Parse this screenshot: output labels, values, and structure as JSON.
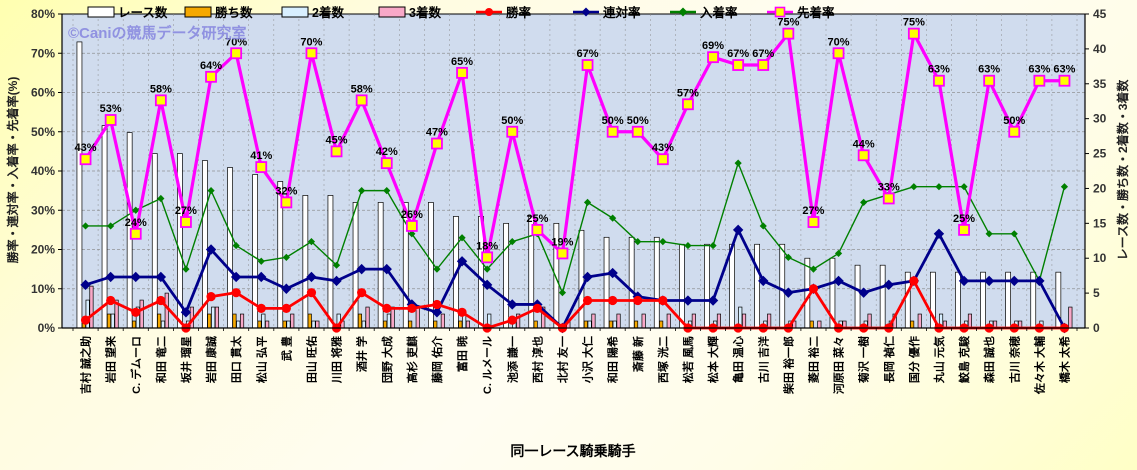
{
  "watermark": "©Caniの競馬データ研究室",
  "axes": {
    "y_left_title": "勝率・連対率・入着率・先着率(%)",
    "y_right_title": "レース数・勝ち数・2着数・3着数",
    "x_title": "同一レース騎乗騎手",
    "y_ticks_left": [
      "0%",
      "10%",
      "20%",
      "30%",
      "40%",
      "50%",
      "60%",
      "70%",
      "80%"
    ],
    "y_ticks_right": [
      "0",
      "5",
      "10",
      "15",
      "20",
      "25",
      "30",
      "35",
      "40",
      "45"
    ]
  },
  "colors": {
    "plot_bg": "#cdd9ec",
    "grid": "#8a8a8a",
    "races_bar": "#ffffff",
    "wins_bar": "#f5a800",
    "seconds_bar": "#d8efff",
    "thirds_bar": "#f8a8c8",
    "win_rate_line": "#ff0000",
    "rentai_line": "#00008b",
    "nyuchaku_line": "#008000",
    "senchaku_line": "#ff00ff",
    "senchaku_marker_fill": "#ffff00",
    "watermark_color": "#8a8ae0"
  },
  "chart_data": {
    "type": "bar+line combo (Excel style)",
    "title": "",
    "xlabel": "同一レース騎乗騎手",
    "ylabel_left": "勝率・連対率・入着率・先着率(%)",
    "ylabel_right": "レース数・勝ち数・2着数・3着数",
    "ylim_left": [
      0,
      80
    ],
    "ylim_right": [
      0,
      45
    ],
    "grid": true,
    "legend_position": "top",
    "categories": [
      "吉村 誠之助",
      "岩田 望来",
      "C. デムーロ",
      "和田 竜二",
      "坂井 瑠星",
      "岩田 康誠",
      "田口 貫太",
      "松山 弘平",
      "武 豊",
      "田山 旺佑",
      "川田 将雅",
      "酒井 学",
      "団野 大成",
      "高杉 吏麒",
      "藤岡 佑介",
      "富田 暁",
      "C. ルメール",
      "池添 謙一",
      "西村 淳也",
      "北村 友一",
      "小沢 大仁",
      "和田 陽希",
      "斎藤 新",
      "西塚 洸二",
      "松若 風馬",
      "松本 大輝",
      "亀田 温心",
      "古川 吉洋",
      "柴田 裕一郎",
      "菱田 裕二",
      "河原田 菜々",
      "菊沢 一樹",
      "長岡 禎仁",
      "国分 優作",
      "丸山 元気",
      "鮫島 克駿",
      "森田 誠也",
      "古川 奈穂",
      "佐々木 大輔",
      "橋木 太希"
    ],
    "bar_series": [
      {
        "name": "レース数",
        "color": "#ffffff",
        "axis": "right",
        "values": [
          41,
          29,
          28,
          25,
          25,
          24,
          23,
          22,
          21,
          19,
          19,
          18,
          18,
          18,
          18,
          16,
          16,
          15,
          16,
          15,
          14,
          13,
          13,
          13,
          12,
          12,
          12,
          12,
          12,
          10,
          10,
          9,
          9,
          8,
          8,
          8,
          8,
          8,
          8,
          8
        ]
      },
      {
        "name": "勝ち数",
        "color": "#f5a800",
        "axis": "right",
        "values": [
          1,
          2,
          1,
          2,
          0,
          2,
          2,
          1,
          1,
          2,
          0,
          2,
          1,
          1,
          1,
          1,
          0,
          0,
          1,
          0,
          1,
          1,
          1,
          1,
          0,
          0,
          0,
          0,
          0,
          1,
          0,
          0,
          0,
          1,
          0,
          0,
          0,
          0,
          0,
          0
        ]
      },
      {
        "name": "2着数",
        "color": "#d8efff",
        "axis": "right",
        "values": [
          4,
          2,
          3,
          1,
          1,
          3,
          1,
          2,
          1,
          1,
          2,
          1,
          2,
          0,
          0,
          2,
          2,
          1,
          0,
          0,
          1,
          1,
          0,
          0,
          1,
          1,
          3,
          1,
          1,
          0,
          1,
          1,
          1,
          0,
          2,
          1,
          1,
          1,
          1,
          0
        ]
      },
      {
        "name": "3着数",
        "color": "#f8a8c8",
        "axis": "right",
        "values": [
          6,
          4,
          4,
          5,
          3,
          3,
          2,
          1,
          2,
          1,
          1,
          3,
          3,
          3,
          2,
          1,
          0,
          2,
          3,
          1,
          2,
          2,
          2,
          2,
          2,
          2,
          2,
          2,
          1,
          1,
          1,
          2,
          2,
          2,
          1,
          2,
          1,
          1,
          0,
          3
        ]
      }
    ],
    "line_series": [
      {
        "name": "勝率",
        "color": "#ff0000",
        "marker": "circle",
        "axis": "left",
        "values": [
          2,
          7,
          4,
          7,
          0,
          8,
          9,
          5,
          5,
          9,
          0,
          9,
          5,
          5,
          6,
          4,
          0,
          2,
          5,
          0,
          7,
          7,
          7,
          7,
          0,
          0,
          0,
          0,
          0,
          10,
          0,
          0,
          0,
          12,
          0,
          0,
          0,
          0,
          0,
          0
        ]
      },
      {
        "name": "連対率",
        "color": "#00008b",
        "marker": "diamond",
        "axis": "left",
        "values": [
          11,
          13,
          13,
          13,
          4,
          20,
          13,
          13,
          10,
          13,
          12,
          15,
          15,
          6,
          4,
          17,
          11,
          6,
          6,
          0,
          13,
          14,
          8,
          7,
          7,
          7,
          25,
          12,
          9,
          10,
          12,
          9,
          11,
          12,
          24,
          12,
          12,
          12,
          12,
          0
        ]
      },
      {
        "name": "入着率",
        "color": "#008000",
        "marker": "diamond",
        "axis": "left",
        "values": [
          26,
          26,
          30,
          33,
          15,
          35,
          21,
          17,
          18,
          22,
          16,
          35,
          35,
          24,
          15,
          23,
          15,
          22,
          24,
          9,
          32,
          28,
          22,
          22,
          21,
          21,
          42,
          26,
          18,
          15,
          19,
          32,
          34,
          36,
          36,
          36,
          24,
          24,
          12,
          36
        ]
      },
      {
        "name": "先着率",
        "color": "#ff00ff",
        "marker": "square",
        "axis": "left",
        "data_labels": true,
        "values": [
          43,
          53,
          24,
          58,
          27,
          64,
          70,
          41,
          32,
          70,
          45,
          58,
          42,
          26,
          47,
          65,
          18,
          50,
          25,
          19,
          67,
          50,
          50,
          43,
          57,
          69,
          67,
          67,
          75,
          27,
          70,
          44,
          33,
          75,
          63,
          25,
          63,
          50,
          63,
          63
        ],
        "labels": [
          "43%",
          "53%",
          "24%",
          "58%",
          "27%",
          "64%",
          "70%",
          "41%",
          "32%",
          "70%",
          "45%",
          "58%",
          "42%",
          "26%",
          "47%",
          "65%",
          "18%",
          "50%",
          "25%",
          "19%",
          "67%",
          "50%",
          "50%",
          "43%",
          "57%",
          "69%",
          "67%",
          "67%",
          "75%",
          "27%",
          "70%",
          "44%",
          "33%",
          "75%",
          "63%",
          "25%",
          "63%",
          "50%",
          "63%",
          "63%"
        ]
      }
    ]
  }
}
